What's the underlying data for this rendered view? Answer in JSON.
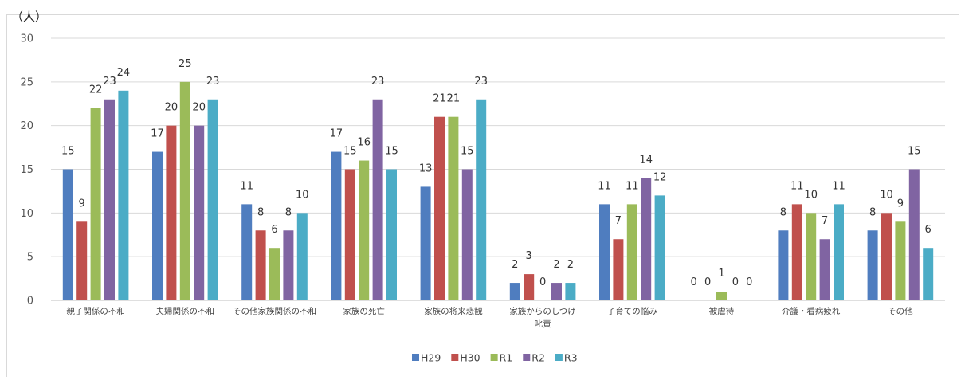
{
  "chart_data": {
    "type": "bar",
    "unit_label": "（人）",
    "ylim": [
      0,
      30
    ],
    "yticks": [
      0,
      5,
      10,
      15,
      20,
      25,
      30
    ],
    "grid": true,
    "legend_position": "bottom",
    "categories": [
      [
        "親子関係の不和"
      ],
      [
        "夫婦関係の不和"
      ],
      [
        "その他家族関係の不和"
      ],
      [
        "家族の死亡"
      ],
      [
        "家族の将来悲観"
      ],
      [
        "家族からのしつけ",
        "叱責"
      ],
      [
        "子育ての悩み"
      ],
      [
        "被虐待"
      ],
      [
        "介護・看病疲れ"
      ],
      [
        "その他"
      ]
    ],
    "series": [
      {
        "name": "H29",
        "color": "#4F7DBF",
        "values": [
          15,
          17,
          11,
          17,
          13,
          2,
          11,
          0,
          8,
          8
        ]
      },
      {
        "name": "H30",
        "color": "#C0504D",
        "values": [
          9,
          20,
          8,
          15,
          21,
          3,
          7,
          0,
          11,
          10
        ]
      },
      {
        "name": "R1",
        "color": "#9BBB59",
        "values": [
          22,
          25,
          6,
          16,
          21,
          0,
          11,
          1,
          10,
          9
        ]
      },
      {
        "name": "R2",
        "color": "#8064A2",
        "values": [
          23,
          20,
          8,
          23,
          15,
          2,
          14,
          0,
          7,
          15
        ]
      },
      {
        "name": "R3",
        "color": "#4BACC6",
        "values": [
          24,
          23,
          10,
          15,
          23,
          2,
          12,
          0,
          11,
          6
        ]
      }
    ]
  }
}
